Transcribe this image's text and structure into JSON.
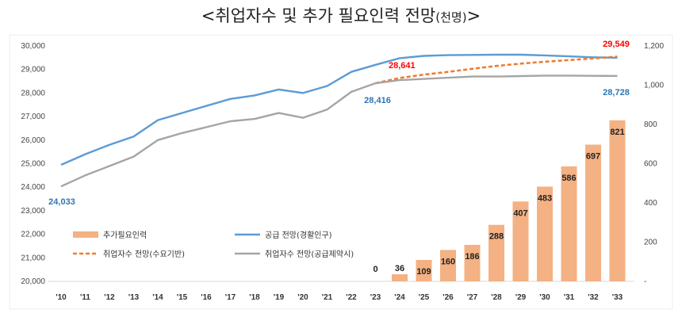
{
  "header": {
    "title": "<취업자수 및 추가 필요인력 전망",
    "unit": "(천명)",
    "close": ">"
  },
  "chart_data": {
    "type": "bar+line",
    "categories": [
      "'10",
      "'11",
      "'12",
      "'13",
      "'14",
      "'15",
      "'16",
      "'17",
      "'18",
      "'19",
      "'20",
      "'21",
      "'22",
      "'23",
      "'24",
      "'25",
      "'26",
      "'27",
      "'28",
      "'29",
      "'30",
      "'31",
      "'32",
      "'33"
    ],
    "left_axis": {
      "min": 20000,
      "max": 30000,
      "step": 1000,
      "tick_labels": [
        "20,000",
        "21,000",
        "22,000",
        "23,000",
        "24,000",
        "25,000",
        "26,000",
        "27,000",
        "28,000",
        "29,000",
        "30,000"
      ]
    },
    "right_axis": {
      "min": 0,
      "max": 1200,
      "step": 200,
      "tick_labels": [
        "-",
        "200",
        "400",
        "600",
        "800",
        "1,000",
        "1,200"
      ]
    },
    "grid": false,
    "legend_position": "bottom-left",
    "series": [
      {
        "name": "추가필요인력",
        "kind": "bar",
        "axis": "right",
        "color": "#f4b183",
        "values": [
          null,
          null,
          null,
          null,
          null,
          null,
          null,
          null,
          null,
          null,
          null,
          null,
          null,
          0,
          36,
          109,
          160,
          186,
          288,
          407,
          483,
          586,
          697,
          821
        ],
        "labels": [
          null,
          null,
          null,
          null,
          null,
          null,
          null,
          null,
          null,
          null,
          null,
          null,
          null,
          "0",
          "36",
          "109",
          "160",
          "186",
          "288",
          "407",
          "483",
          "586",
          "697",
          "821"
        ]
      },
      {
        "name": "공급 전망(경활인구)",
        "kind": "line",
        "axis": "left",
        "color": "#5b9bd5",
        "dash": "solid",
        "values": [
          24950,
          25400,
          25800,
          26150,
          26850,
          27150,
          27450,
          27750,
          27900,
          28150,
          28000,
          28300,
          28900,
          29200,
          29480,
          29580,
          29610,
          29620,
          29630,
          29630,
          29600,
          29560,
          29520,
          29500
        ]
      },
      {
        "name": "취업자수 전망(수요기반)",
        "kind": "line",
        "axis": "left",
        "color": "#ed7d31",
        "dash": "dashed",
        "values": [
          null,
          null,
          null,
          null,
          null,
          null,
          null,
          null,
          null,
          null,
          null,
          null,
          null,
          28416,
          28641,
          28780,
          28900,
          29030,
          29150,
          29250,
          29330,
          29400,
          29470,
          29549
        ]
      },
      {
        "name": "취업자수 전망(공급제약시)",
        "kind": "line",
        "axis": "left",
        "color": "#a5a5a5",
        "dash": "solid",
        "values": [
          24033,
          24500,
          24900,
          25300,
          26000,
          26300,
          26550,
          26800,
          26900,
          27150,
          26950,
          27300,
          28050,
          28416,
          28550,
          28600,
          28650,
          28700,
          28700,
          28720,
          28740,
          28740,
          28730,
          28728
        ]
      }
    ],
    "annotations": [
      {
        "text": "24,033",
        "color": "#2e75b6"
      },
      {
        "text": "28,416",
        "color": "#2e75b6"
      },
      {
        "text": "28,641",
        "color": "#ff0000"
      },
      {
        "text": "29,549",
        "color": "#ff0000"
      },
      {
        "text": "28,728",
        "color": "#2e75b6"
      }
    ]
  }
}
